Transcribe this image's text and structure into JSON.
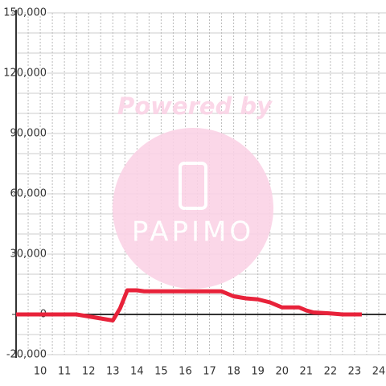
{
  "chart_data": {
    "type": "line",
    "watermark": {
      "line1": "Powered by",
      "line2": "PAPIMO"
    },
    "x": [
      9,
      11.5,
      12,
      12.5,
      13,
      13.3,
      13.6,
      14,
      14.3,
      17.5,
      18,
      18.5,
      19,
      19.5,
      20,
      20.7,
      21,
      21.3,
      22,
      22.5,
      23.3
    ],
    "series": [
      {
        "color": "#e8223a",
        "values": [
          0,
          0,
          -1000,
          -2000,
          -3000,
          3000,
          12000,
          12000,
          11500,
          11500,
          9000,
          8000,
          7500,
          6000,
          3500,
          3500,
          2000,
          1000,
          500,
          0,
          0
        ]
      }
    ],
    "xlim": [
      9,
      24.3
    ],
    "ylim": [
      -20000,
      150000
    ],
    "xticks": [
      10,
      11,
      12,
      13,
      14,
      15,
      16,
      17,
      18,
      19,
      20,
      21,
      22,
      23,
      24
    ],
    "xminorticks": [
      9.5,
      10.5,
      11.5,
      12.5,
      13.5,
      14.5,
      15.5,
      16.5,
      17.5,
      18.5,
      19.5,
      20.5,
      21.5,
      22.5,
      23.5
    ],
    "yticks": [
      {
        "value": -20000,
        "label": "-20,000"
      },
      0,
      {
        "value": 30000,
        "label": "30,000"
      },
      {
        "value": 60000,
        "label": "60,000"
      },
      {
        "value": 90000,
        "label": "90,000"
      },
      {
        "value": 120000,
        "label": "120,000"
      },
      {
        "value": 150000,
        "label": "150,000"
      }
    ],
    "yminorticks": [
      -10000,
      10000,
      20000,
      40000,
      50000,
      70000,
      80000,
      100000,
      110000,
      130000,
      140000
    ],
    "grid": true
  }
}
